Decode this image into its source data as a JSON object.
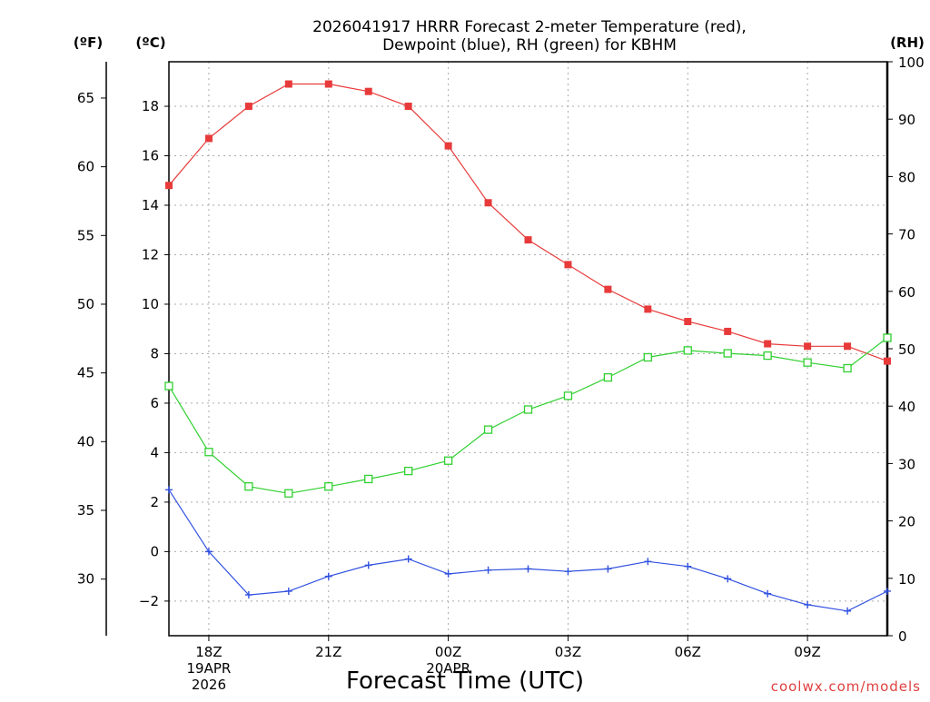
{
  "chart_data": {
    "type": "line",
    "title": [
      "2026041917 HRRR Forecast 2-meter Temperature (red),",
      "Dewpoint (blue), RH (green) for KBHM"
    ],
    "xlabel": "Forecast Time (UTC)",
    "credit": "coolwx.com/models",
    "units": {
      "f": "(ºF)",
      "c": "(ºC)",
      "rh": "(RH)"
    },
    "hour_range": [
      0,
      18
    ],
    "c_range": [
      -3.4,
      19.8
    ],
    "rh_range": [
      0,
      100
    ],
    "x_ticks": [
      {
        "hour": 1,
        "lines": [
          "18Z",
          "19APR",
          "2026"
        ]
      },
      {
        "hour": 4,
        "lines": [
          "21Z"
        ]
      },
      {
        "hour": 7,
        "lines": [
          "00Z",
          "20APR"
        ]
      },
      {
        "hour": 10,
        "lines": [
          "03Z"
        ]
      },
      {
        "hour": 13,
        "lines": [
          "06Z"
        ]
      },
      {
        "hour": 16,
        "lines": [
          "09Z"
        ]
      }
    ],
    "c_ticks": [
      -2,
      0,
      2,
      4,
      6,
      8,
      10,
      12,
      14,
      16,
      18
    ],
    "f_ticks": [
      30,
      35,
      40,
      45,
      50,
      55,
      60,
      65
    ],
    "rh_ticks": [
      0,
      10,
      20,
      30,
      40,
      50,
      60,
      70,
      80,
      90,
      100
    ],
    "series": [
      {
        "name": "Temperature (red)",
        "axis": "c",
        "color": "#e83a3a",
        "marker": "filled-square",
        "values": [
          14.8,
          16.7,
          18.0,
          18.9,
          18.9,
          18.6,
          18.0,
          16.4,
          14.1,
          12.6,
          11.6,
          10.6,
          9.8,
          9.3,
          8.9,
          8.4,
          8.3,
          8.3,
          7.7
        ]
      },
      {
        "name": "Dewpoint (blue)",
        "axis": "c",
        "color": "#3050e0",
        "marker": "plus",
        "values": [
          2.5,
          0.0,
          -1.75,
          -1.6,
          -1.0,
          -0.55,
          -0.3,
          -0.9,
          -0.75,
          -0.7,
          -0.8,
          -0.7,
          -0.4,
          -0.6,
          -1.1,
          -1.7,
          -2.15,
          -2.4,
          -1.6
        ]
      },
      {
        "name": "RH (green)",
        "axis": "rh",
        "color": "#30d030",
        "marker": "open-square",
        "values": [
          43.5,
          32.0,
          26.0,
          24.8,
          26.0,
          27.3,
          28.7,
          30.5,
          35.9,
          39.4,
          41.8,
          45.0,
          48.5,
          49.7,
          49.2,
          48.8,
          47.6,
          46.6,
          51.9
        ]
      }
    ]
  }
}
